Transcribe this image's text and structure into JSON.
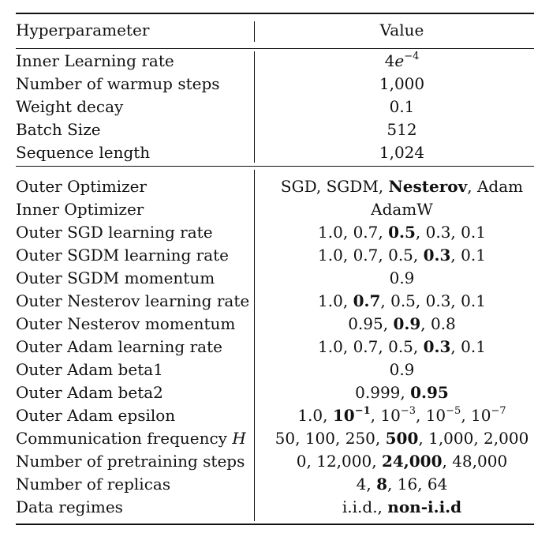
{
  "header": {
    "param": "Hyperparameter",
    "value": "Value"
  },
  "group1": [
    {
      "param": "Inner Learning rate",
      "value": [
        {
          "t": "4"
        },
        {
          "t": "e",
          "i": true
        },
        {
          "t": "−4",
          "sup": true
        }
      ]
    },
    {
      "param": "Number of warmup steps",
      "value": [
        {
          "t": "1,000"
        }
      ]
    },
    {
      "param": "Weight decay",
      "value": [
        {
          "t": "0.1"
        }
      ]
    },
    {
      "param": "Batch Size",
      "value": [
        {
          "t": "512"
        }
      ]
    },
    {
      "param": "Sequence length",
      "value": [
        {
          "t": "1,024"
        }
      ]
    }
  ],
  "group2": [
    {
      "param": "Outer Optimizer",
      "value": [
        {
          "t": "SGD, SGDM, "
        },
        {
          "t": "Nesterov",
          "b": true
        },
        {
          "t": ", Adam"
        }
      ]
    },
    {
      "param": "Inner Optimizer",
      "value": [
        {
          "t": "AdamW"
        }
      ]
    },
    {
      "param": "Outer SGD learning rate",
      "value": [
        {
          "t": "1.0, 0.7, "
        },
        {
          "t": "0.5",
          "b": true
        },
        {
          "t": ", 0.3, 0.1"
        }
      ]
    },
    {
      "param": "Outer SGDM learning rate",
      "value": [
        {
          "t": "1.0, 0.7, 0.5, "
        },
        {
          "t": "0.3",
          "b": true
        },
        {
          "t": ", 0.1"
        }
      ]
    },
    {
      "param": "Outer SGDM momentum",
      "value": [
        {
          "t": "0.9"
        }
      ]
    },
    {
      "param": "Outer Nesterov learning rate",
      "value": [
        {
          "t": "1.0, "
        },
        {
          "t": "0.7",
          "b": true
        },
        {
          "t": ", 0.5, 0.3, 0.1"
        }
      ]
    },
    {
      "param": "Outer Nesterov momentum",
      "value": [
        {
          "t": "0.95, "
        },
        {
          "t": "0.9",
          "b": true
        },
        {
          "t": ", 0.8"
        }
      ]
    },
    {
      "param": "Outer Adam learning rate",
      "value": [
        {
          "t": "1.0, 0.7, 0.5, "
        },
        {
          "t": "0.3",
          "b": true
        },
        {
          "t": ", 0.1"
        }
      ]
    },
    {
      "param": "Outer Adam beta1",
      "value": [
        {
          "t": "0.9"
        }
      ]
    },
    {
      "param": "Outer Adam beta2",
      "value": [
        {
          "t": "0.999, "
        },
        {
          "t": "0.95",
          "b": true
        }
      ]
    },
    {
      "param": "Outer Adam epsilon",
      "value": [
        {
          "t": "1.0, "
        },
        {
          "t": "10",
          "b": true
        },
        {
          "t": "−1",
          "b": true,
          "sup": true
        },
        {
          "t": ", 10"
        },
        {
          "t": "−3",
          "sup": true
        },
        {
          "t": ", 10"
        },
        {
          "t": "−5",
          "sup": true
        },
        {
          "t": ", 10"
        },
        {
          "t": "−7",
          "sup": true
        }
      ]
    },
    {
      "param": "Communication frequency ",
      "param_var": "H",
      "value": [
        {
          "t": "50, 100, 250, "
        },
        {
          "t": "500",
          "b": true
        },
        {
          "t": ", 1,000, 2,000"
        }
      ]
    },
    {
      "param": "Number of pretraining steps",
      "value": [
        {
          "t": "0, 12,000, "
        },
        {
          "t": "24,000",
          "b": true
        },
        {
          "t": ", 48,000"
        }
      ]
    },
    {
      "param": "Number of replicas",
      "value": [
        {
          "t": "4, "
        },
        {
          "t": "8",
          "b": true
        },
        {
          "t": ", 16, 64"
        }
      ]
    },
    {
      "param": "Data regimes",
      "value": [
        {
          "t": "i.i.d., "
        },
        {
          "t": "non-i.i.d",
          "b": true
        }
      ]
    }
  ]
}
